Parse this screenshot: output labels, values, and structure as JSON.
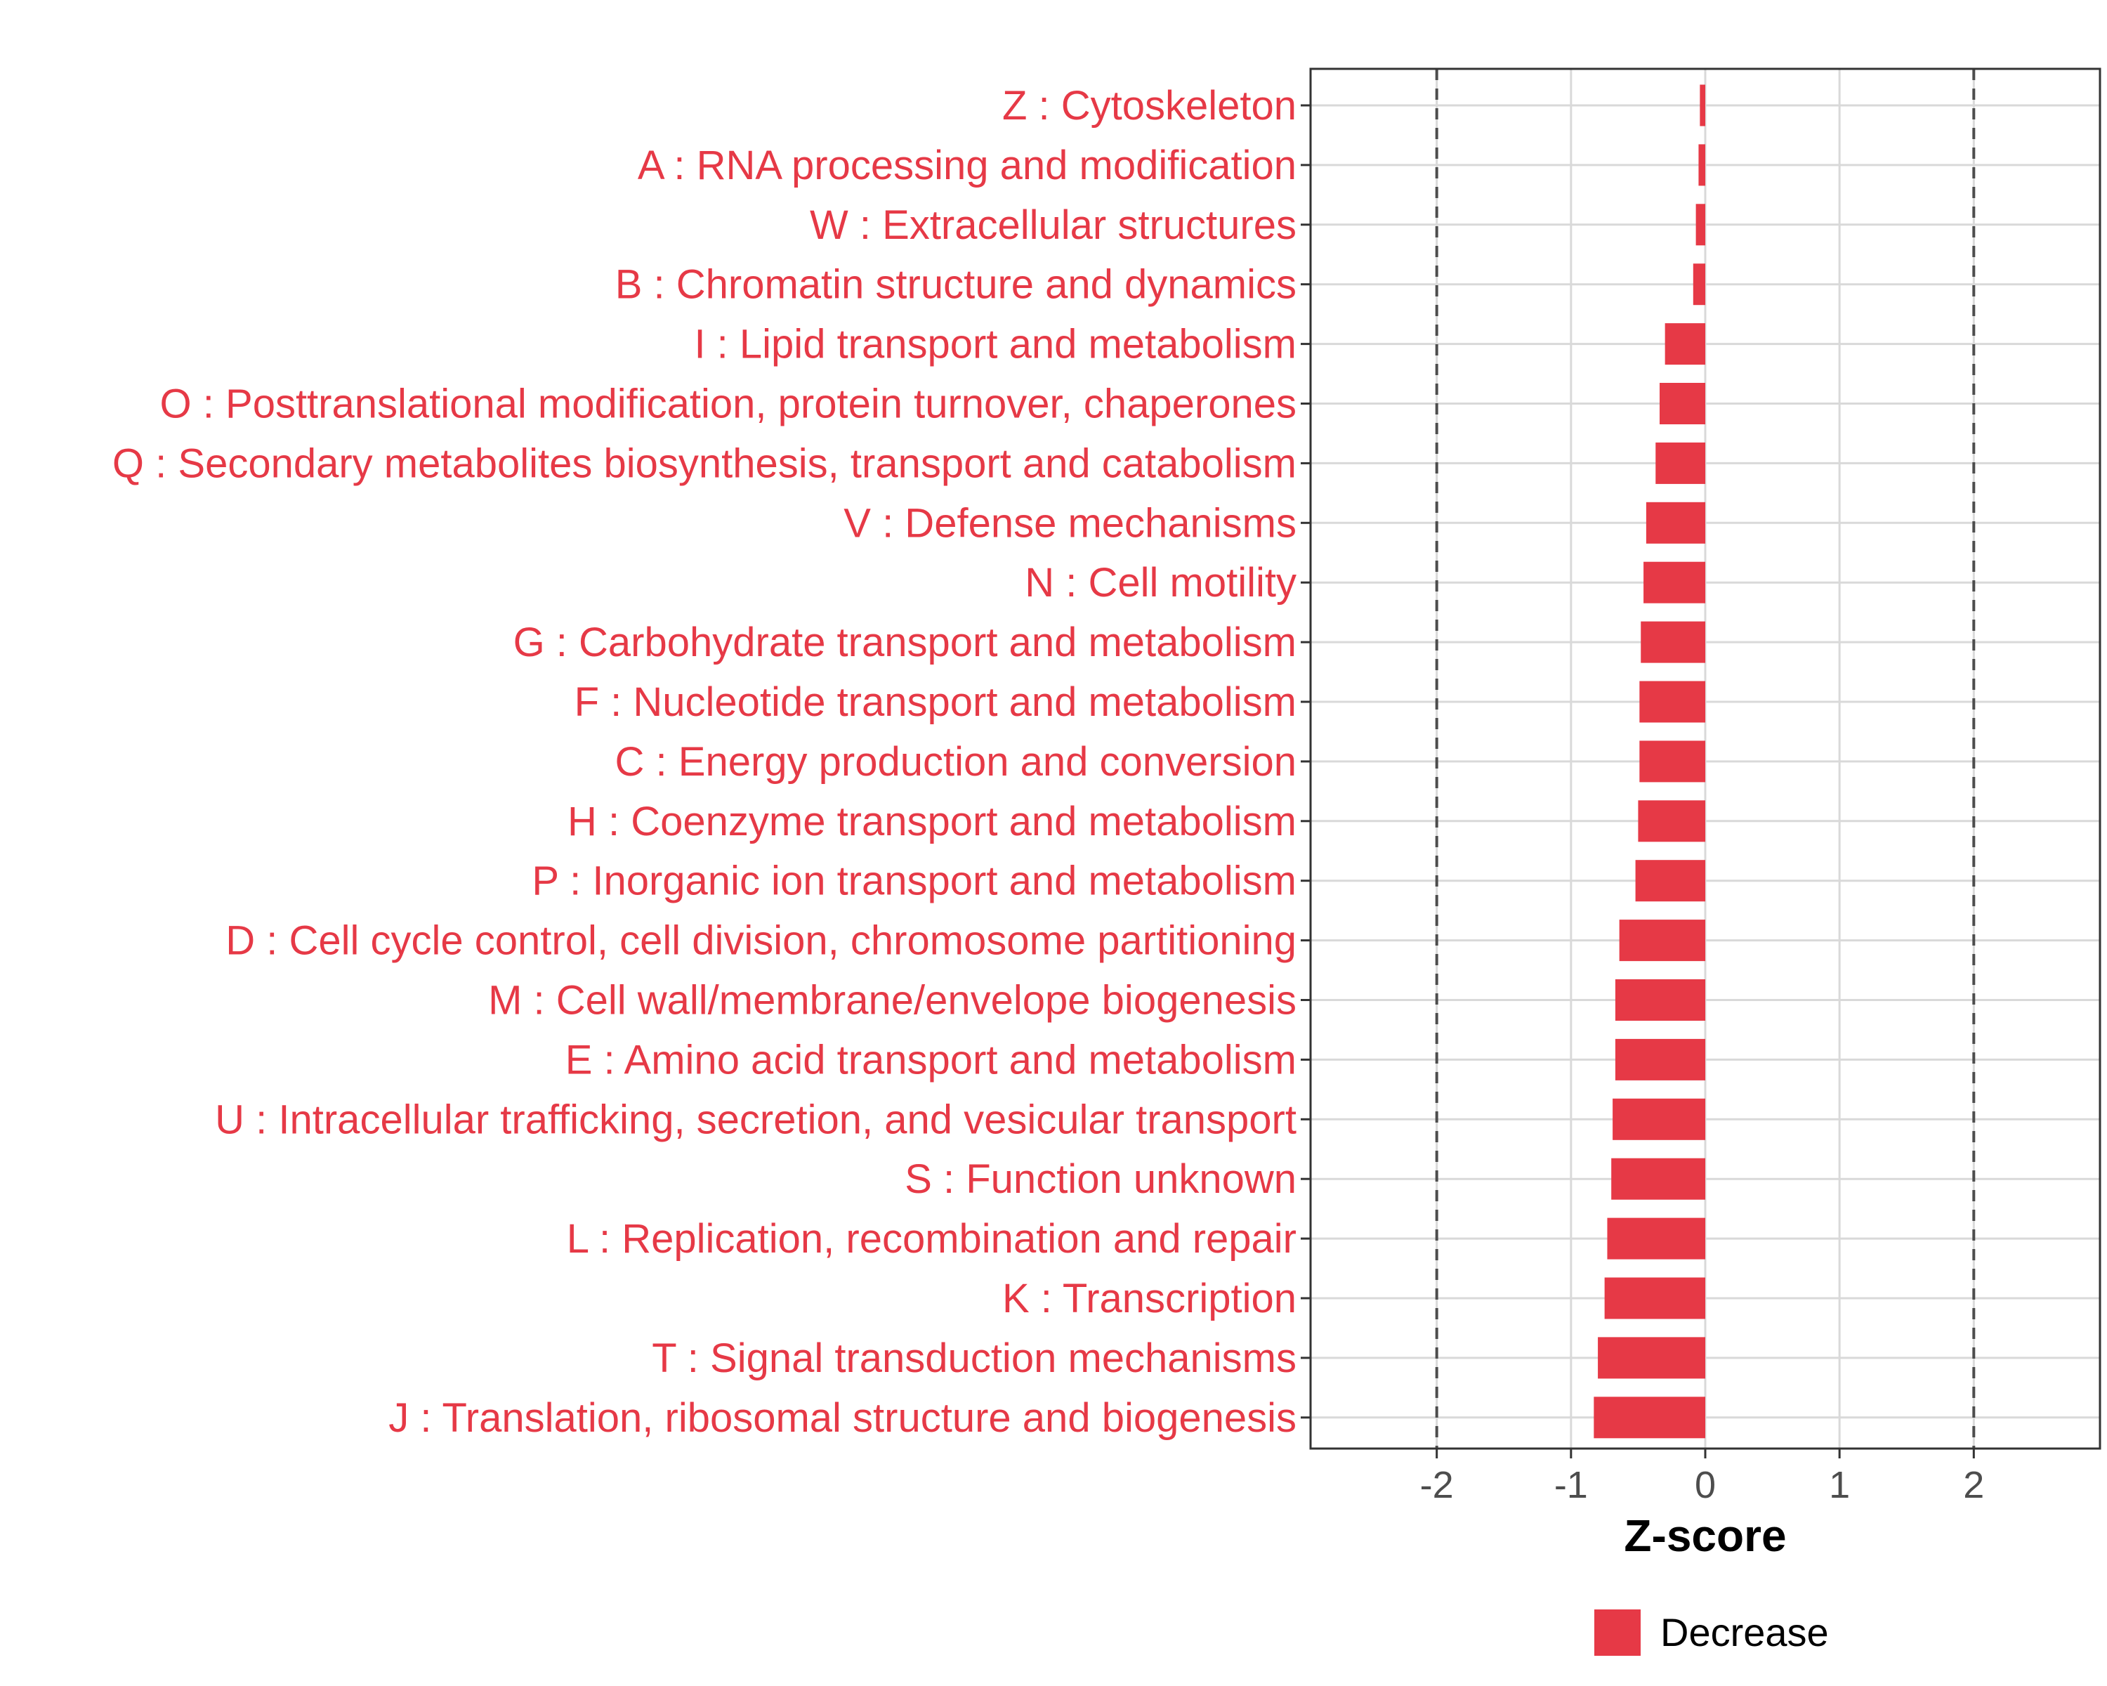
{
  "chart_data": {
    "type": "bar",
    "orientation": "horizontal",
    "title": "",
    "xlabel": "Z-score",
    "ylabel": "",
    "xlim": [
      -2.94,
      2.94
    ],
    "xticks": [
      -2,
      -1,
      0,
      1,
      2
    ],
    "xtick_labels": [
      "-2",
      "-1",
      "0",
      "1",
      "2"
    ],
    "reference_lines": [
      -2,
      2
    ],
    "grid": true,
    "categories": [
      "Z : Cytoskeleton",
      "A : RNA processing and modification",
      "W : Extracellular structures",
      "B : Chromatin structure and dynamics",
      "I : Lipid transport and metabolism",
      "O : Posttranslational modification, protein turnover, chaperones",
      "Q : Secondary metabolites biosynthesis, transport and catabolism",
      "V : Defense mechanisms",
      "N : Cell motility",
      "G : Carbohydrate transport and metabolism",
      "F : Nucleotide transport and metabolism",
      "C : Energy production and conversion",
      "H : Coenzyme transport and metabolism",
      "P : Inorganic ion transport and metabolism",
      "D : Cell cycle control, cell division, chromosome partitioning",
      "M : Cell wall/membrane/envelope biogenesis",
      "E : Amino acid transport and metabolism",
      "U : Intracellular trafficking, secretion, and vesicular transport",
      "S : Function unknown",
      "L : Replication, recombination and repair",
      "K : Transcription",
      "T : Signal transduction mechanisms",
      "J : Translation, ribosomal structure and biogenesis"
    ],
    "values": [
      -0.04,
      -0.05,
      -0.07,
      -0.09,
      -0.3,
      -0.34,
      -0.37,
      -0.44,
      -0.46,
      -0.48,
      -0.49,
      -0.49,
      -0.5,
      -0.52,
      -0.64,
      -0.67,
      -0.67,
      -0.69,
      -0.7,
      -0.73,
      -0.75,
      -0.8,
      -0.83
    ],
    "legend": {
      "title": "",
      "entries": [
        {
          "label": "Decrease",
          "color": "#e63946"
        }
      ],
      "position": "bottom"
    },
    "colors": {
      "bar": "#e63946",
      "label": "#e63946",
      "grid": "#d9d9d9",
      "axis": "#333333",
      "refline": "#4d4d4d"
    }
  }
}
